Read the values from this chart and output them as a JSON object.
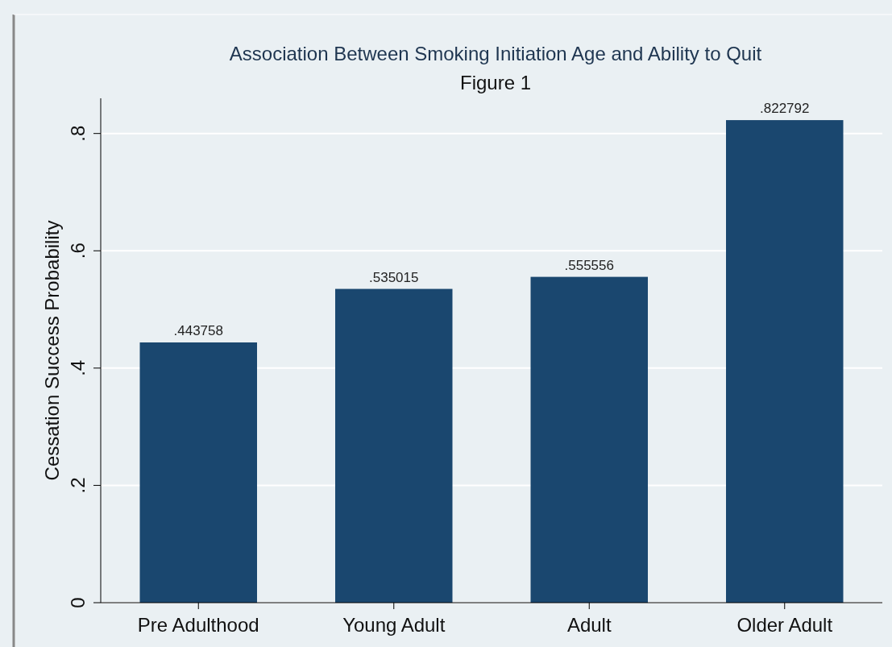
{
  "chart_data": {
    "type": "bar",
    "title": "Association Between Smoking Initiation Age and Ability to Quit",
    "subtitle": "Figure 1",
    "ylabel": "Cessation Success Probability",
    "categories": [
      "Pre Adulthood",
      "Young Adult",
      "Adult",
      "Older Adult"
    ],
    "values": [
      0.443758,
      0.535015,
      0.555556,
      0.822792
    ],
    "value_labels": [
      ".443758",
      ".535015",
      ".555556",
      ".822792"
    ],
    "color": "#1a476f",
    "ylim": [
      0,
      0.86
    ],
    "yticks": [
      0,
      {
        "value": 0.2,
        "label": ".2"
      },
      {
        "value": 0.4,
        "label": ".4"
      },
      {
        "value": 0.6,
        "label": ".6"
      },
      {
        "value": 0.8,
        "label": ".8"
      }
    ],
    "grid": "y"
  }
}
